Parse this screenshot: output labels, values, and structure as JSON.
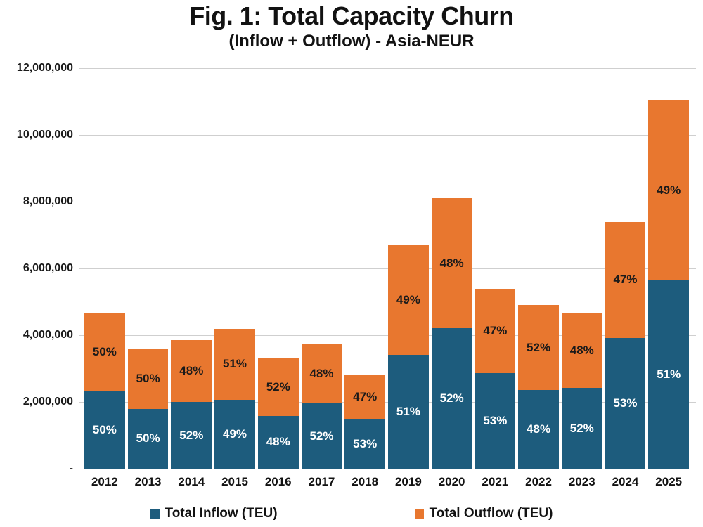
{
  "header": {
    "title": "Fig. 1: Total Capacity Churn",
    "subtitle": "(Inflow + Outflow) - Asia-NEUR"
  },
  "colors": {
    "inflow": "#1d5c7d",
    "outflow": "#e8772f",
    "gridline": "#cfcfcf",
    "pct_text_on_inflow": "#ffffff",
    "pct_text_on_outflow": "#1a1a1a"
  },
  "y_axis": {
    "ticks": [
      {
        "label": "12,000,000",
        "value": 12000000,
        "line": true
      },
      {
        "label": "10,000,000",
        "value": 10000000,
        "line": true
      },
      {
        "label": "8,000,000",
        "value": 8000000,
        "line": true
      },
      {
        "label": "6,000,000",
        "value": 6000000,
        "line": true
      },
      {
        "label": "4,000,000",
        "value": 4000000,
        "line": true
      },
      {
        "label": "2,000,000",
        "value": 2000000,
        "line": true
      },
      {
        "label": "-",
        "value": 0,
        "line": false
      }
    ]
  },
  "legend": {
    "items": [
      {
        "label": "Total Inflow (TEU)",
        "color": "#1d5c7d"
      },
      {
        "label": "Total Outflow (TEU)",
        "color": "#e8772f"
      }
    ]
  },
  "chart_data": {
    "type": "bar",
    "stacked": true,
    "title": "Fig. 1: Total Capacity Churn",
    "subtitle": "(Inflow + Outflow) - Asia-NEUR",
    "categories": [
      "2012",
      "2013",
      "2014",
      "2015",
      "2016",
      "2017",
      "2018",
      "2019",
      "2020",
      "2021",
      "2022",
      "2023",
      "2024",
      "2025"
    ],
    "series": [
      {
        "name": "Total Inflow (TEU)",
        "color": "#1d5c7d",
        "values": [
          2325000,
          1800000,
          2000000,
          2060000,
          1580000,
          1950000,
          1480000,
          3420000,
          4210000,
          2860000,
          2350000,
          2420000,
          3920000,
          5640000
        ],
        "pct_labels": [
          "50%",
          "50%",
          "52%",
          "49%",
          "48%",
          "52%",
          "53%",
          "51%",
          "52%",
          "53%",
          "48%",
          "52%",
          "53%",
          "51%"
        ]
      },
      {
        "name": "Total Outflow (TEU)",
        "color": "#e8772f",
        "values": [
          2325000,
          1800000,
          1850000,
          2140000,
          1720000,
          1800000,
          1320000,
          3280000,
          3890000,
          2540000,
          2550000,
          2230000,
          3480000,
          5410000
        ],
        "pct_labels": [
          "50%",
          "50%",
          "48%",
          "51%",
          "52%",
          "48%",
          "47%",
          "49%",
          "48%",
          "47%",
          "52%",
          "48%",
          "47%",
          "49%"
        ]
      }
    ],
    "totals": [
      4650000,
      3600000,
      3850000,
      4200000,
      3300000,
      3750000,
      2800000,
      6700000,
      8100000,
      5400000,
      4900000,
      4650000,
      7400000,
      11050000
    ],
    "xlabel": "",
    "ylabel": "",
    "ylim": [
      0,
      12000000
    ],
    "y_tick_step": 2000000,
    "grid": true,
    "legend_position": "bottom"
  }
}
